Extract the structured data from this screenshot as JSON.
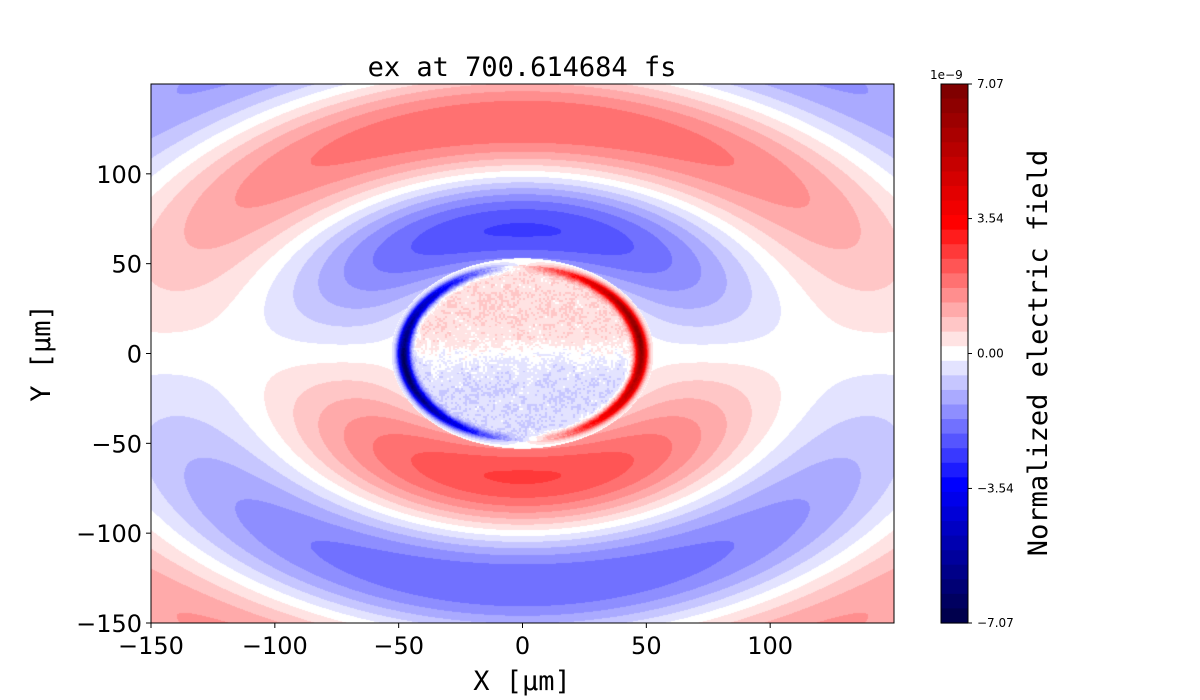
{
  "chart_data": {
    "type": "heatmap",
    "title": "ex at 700.614684 fs",
    "xlabel": "X [μm]",
    "ylabel": "Y [μm]",
    "xlim": [
      -150,
      150
    ],
    "ylim": [
      -150,
      150
    ],
    "xticks": [
      -150,
      -100,
      -50,
      0,
      50,
      100
    ],
    "xtick_labels": [
      "−150",
      "−100",
      "−50",
      "0",
      "50",
      "100"
    ],
    "yticks": [
      -150,
      -100,
      -50,
      0,
      50,
      100
    ],
    "ytick_labels": [
      "−150",
      "−100",
      "−50",
      "0",
      "50",
      "100"
    ],
    "grid": false,
    "colorbar": {
      "label": "Normalized electric field",
      "exponent_label": "1e−9",
      "range": [
        -7.07,
        7.07
      ],
      "ticks": [
        7.07,
        3.54,
        0.0,
        -3.54,
        -7.07
      ],
      "tick_labels": [
        "7.07",
        "3.54",
        "0.00",
        "−3.54",
        "−7.07"
      ],
      "levels_per_side": 18,
      "colormap": "seismic"
    },
    "field_model": {
      "sphere_radius": 50,
      "rim_peak": 6.5,
      "interior_level": 0.5,
      "wave_amplitude": 2.6,
      "wavelength": 120,
      "phase_radius": 70,
      "x_stretch": 1.15
    }
  }
}
